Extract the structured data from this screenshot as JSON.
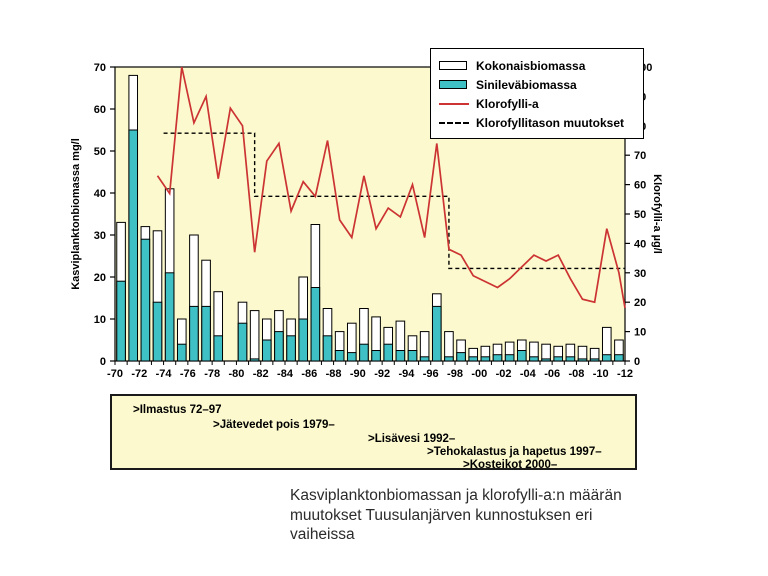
{
  "caption": "Kasviplanktonbiomassan ja klorofylli-a:n määrän muutokset Tuusulanjärven kunnostuksen eri vaiheissa",
  "annotations": {
    "items": [
      {
        "text": ">Ilmastus 72–97"
      },
      {
        "text": ">Jätevedet pois 1979–"
      },
      {
        "text": ">Lisävesi 1992–"
      },
      {
        "text": ">Tehokalastus ja hapetus 1997–"
      },
      {
        "text": ">Kosteikot 2000–"
      }
    ]
  },
  "chart_data": {
    "type": "bar",
    "subtype": "stacked-bars-with-lines",
    "left_axis": {
      "label": "Kasviplanktonbiomassa  mg/l",
      "min": 0,
      "max": 70,
      "tick_labels": [
        "0",
        "10",
        "20",
        "30",
        "40",
        "50",
        "60",
        "70"
      ]
    },
    "right_axis": {
      "label": "Klorofylli-a  µg/l",
      "min": 0,
      "max": 100,
      "tick_labels": [
        "0",
        "10",
        "20",
        "30",
        "40",
        "50",
        "60",
        "70",
        "80",
        "90",
        "100"
      ]
    },
    "x_axis": {
      "start_year": 1970,
      "end_year": 2012,
      "tick_labels": [
        "-70",
        "-72",
        "-74",
        "-76",
        "-78",
        "-80",
        "-82",
        "-84",
        "-86",
        "-88",
        "-90",
        "-92",
        "-94",
        "-96",
        "-98",
        "-00",
        "-02",
        "-04",
        "-06",
        "-08",
        "-10",
        "-12"
      ]
    },
    "legend": [
      {
        "key": "total",
        "label": "Kokonaisbiomassa",
        "style": "white-bar"
      },
      {
        "key": "sinileva",
        "label": "Sinileväbiomassa",
        "style": "teal-bar"
      },
      {
        "key": "chlorophyll",
        "label": "Klorofylli-a",
        "style": "red-line"
      },
      {
        "key": "chlorophyll_level",
        "label": "Klorofyllitason muutokset",
        "style": "black-dashed-line"
      }
    ],
    "colors": {
      "plot_bg": "#fbf9cd",
      "total_bar": "#ffffff",
      "sinileva_bar": "#3fc0c4",
      "chlorophyll_line": "#cc3333",
      "dashed_line": "#000000",
      "frame": "#000000"
    },
    "grid": false,
    "bars": [
      {
        "year": 1970,
        "total": 33,
        "sinileva": 19
      },
      {
        "year": 1971,
        "total": 68,
        "sinileva": 55
      },
      {
        "year": 1972,
        "total": 32,
        "sinileva": 29
      },
      {
        "year": 1973,
        "total": 31,
        "sinileva": 14
      },
      {
        "year": 1974,
        "total": 41,
        "sinileva": 21
      },
      {
        "year": 1975,
        "total": 10,
        "sinileva": 4
      },
      {
        "year": 1976,
        "total": 30,
        "sinileva": 13
      },
      {
        "year": 1977,
        "total": 24,
        "sinileva": 13
      },
      {
        "year": 1978,
        "total": 16.5,
        "sinileva": 6
      },
      {
        "year": 1979,
        "total": null,
        "sinileva": null
      },
      {
        "year": 1980,
        "total": 14,
        "sinileva": 9
      },
      {
        "year": 1981,
        "total": 12,
        "sinileva": 0.5
      },
      {
        "year": 1982,
        "total": 10,
        "sinileva": 5
      },
      {
        "year": 1983,
        "total": 12,
        "sinileva": 7
      },
      {
        "year": 1984,
        "total": 10,
        "sinileva": 6
      },
      {
        "year": 1985,
        "total": 20,
        "sinileva": 10
      },
      {
        "year": 1986,
        "total": 32.5,
        "sinileva": 17.5
      },
      {
        "year": 1987,
        "total": 12.5,
        "sinileva": 6
      },
      {
        "year": 1988,
        "total": 7,
        "sinileva": 2.5
      },
      {
        "year": 1989,
        "total": 9,
        "sinileva": 2
      },
      {
        "year": 1990,
        "total": 12.5,
        "sinileva": 4
      },
      {
        "year": 1991,
        "total": 10.5,
        "sinileva": 2.5
      },
      {
        "year": 1992,
        "total": 8,
        "sinileva": 4
      },
      {
        "year": 1993,
        "total": 9.5,
        "sinileva": 2.5
      },
      {
        "year": 1994,
        "total": 6,
        "sinileva": 2.5
      },
      {
        "year": 1995,
        "total": 7,
        "sinileva": 1
      },
      {
        "year": 1996,
        "total": 16,
        "sinileva": 13
      },
      {
        "year": 1997,
        "total": 7,
        "sinileva": 1
      },
      {
        "year": 1998,
        "total": 5,
        "sinileva": 2
      },
      {
        "year": 1999,
        "total": 3,
        "sinileva": 1
      },
      {
        "year": 2000,
        "total": 3.5,
        "sinileva": 1
      },
      {
        "year": 2001,
        "total": 4,
        "sinileva": 1.5
      },
      {
        "year": 2002,
        "total": 4.5,
        "sinileva": 1.5
      },
      {
        "year": 2003,
        "total": 5,
        "sinileva": 2.5
      },
      {
        "year": 2004,
        "total": 4.5,
        "sinileva": 1
      },
      {
        "year": 2005,
        "total": 4,
        "sinileva": 0.5
      },
      {
        "year": 2006,
        "total": 3.5,
        "sinileva": 1
      },
      {
        "year": 2007,
        "total": 4,
        "sinileva": 1
      },
      {
        "year": 2008,
        "total": 3.5,
        "sinileva": 0.5
      },
      {
        "year": 2009,
        "total": 3,
        "sinileva": 0.5
      },
      {
        "year": 2010,
        "total": 8,
        "sinileva": 1.5
      },
      {
        "year": 2011,
        "total": 5,
        "sinileva": 1.5
      }
    ],
    "chlorophyll_line": [
      [
        1973,
        63
      ],
      [
        1974,
        57
      ],
      [
        1975,
        100
      ],
      [
        1976,
        81
      ],
      [
        1977,
        90
      ],
      [
        1978,
        62
      ],
      [
        1979,
        86
      ],
      [
        1980,
        80
      ],
      [
        1981,
        37
      ],
      [
        1982,
        68
      ],
      [
        1983,
        74
      ],
      [
        1984,
        51
      ],
      [
        1985,
        61
      ],
      [
        1986,
        56
      ],
      [
        1987,
        75
      ],
      [
        1988,
        48
      ],
      [
        1989,
        42
      ],
      [
        1990,
        63
      ],
      [
        1991,
        45
      ],
      [
        1992,
        52
      ],
      [
        1993,
        49
      ],
      [
        1994,
        60
      ],
      [
        1995,
        42
      ],
      [
        1996,
        74
      ],
      [
        1997,
        38
      ],
      [
        1998,
        36
      ],
      [
        1999,
        29
      ],
      [
        2000,
        27
      ],
      [
        2001,
        25
      ],
      [
        2002,
        28
      ],
      [
        2003,
        32
      ],
      [
        2004,
        36
      ],
      [
        2005,
        34
      ],
      [
        2006,
        36
      ],
      [
        2007,
        28
      ],
      [
        2008,
        21
      ],
      [
        2009,
        20
      ],
      [
        2010,
        45
      ],
      [
        2011,
        30
      ],
      [
        2012,
        18
      ]
    ],
    "chlorophyll_level_steps": [
      {
        "from": 1974,
        "to": 1981,
        "level": 77.5
      },
      {
        "from": 1981,
        "to": 1997,
        "level": 56
      },
      {
        "from": 1997,
        "to": 2012,
        "level": 31.5
      }
    ]
  }
}
